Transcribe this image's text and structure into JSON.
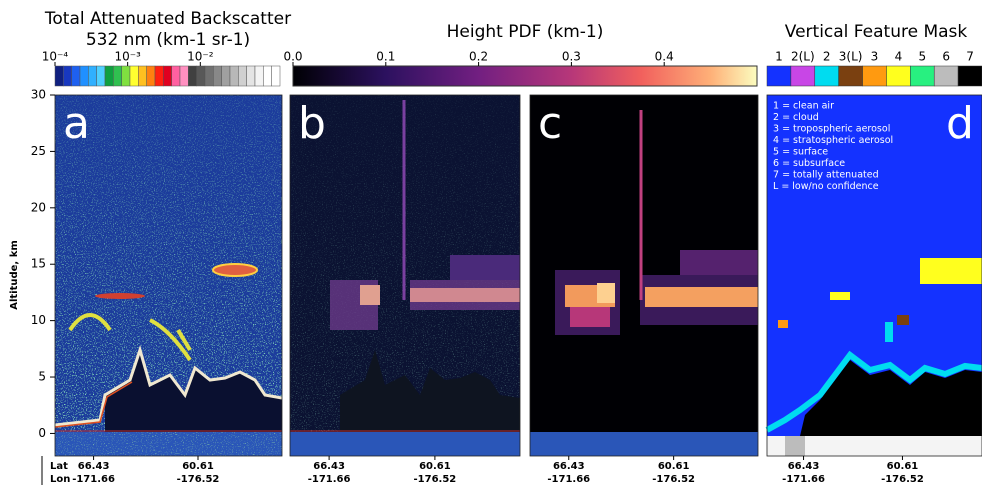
{
  "backscatter_bar": {
    "title_lines": [
      "Total Attenuated Backscatter",
      "532 nm (km-1 sr-1)"
    ],
    "log": true,
    "lim": [
      0.0001,
      0.125
    ],
    "ticks": [
      {
        "value": 0.0001,
        "label": "10⁻⁴"
      },
      {
        "value": 0.001,
        "label": "10⁻³"
      },
      {
        "value": 0.01,
        "label": "10⁻²"
      }
    ]
  },
  "pdf_bar": {
    "title": "Height PDF (km-1)",
    "lim": [
      0,
      0.5
    ],
    "ticks": [
      {
        "value": 0,
        "label": "0.0"
      },
      0.1,
      0.2,
      0.3,
      0.4
    ]
  },
  "feature_mask_bar": {
    "title": "Vertical Feature Mask",
    "categories": [
      "1",
      "2(L)",
      "2",
      "3(L)",
      "3",
      "4",
      "5",
      "6",
      "7"
    ],
    "colors": [
      "#1432ff",
      "#c846e6",
      "#00dcf0",
      "#7a4010",
      "#ff9a10",
      "#ffff1e",
      "#28f080",
      "#bcbcbc",
      "#000000"
    ]
  },
  "panels": [
    "a",
    "b",
    "c",
    "d"
  ],
  "legend": [
    "1 = clean air",
    "2 = cloud",
    "3 = tropospheric aerosol",
    "4 = stratospheric aerosol",
    "5 = surface",
    "6 = subsurface",
    "7 = totally attenuated",
    "L = low/no confidence"
  ],
  "y_axis": {
    "label": "Altitude, km",
    "lim": [
      -2,
      30
    ],
    "ticks": [
      0,
      5,
      10,
      15,
      20,
      25,
      30
    ]
  },
  "x_axis": {
    "row_labels": [
      "Lat",
      "Lon"
    ],
    "ticks": [
      {
        "lat": 66.43,
        "lon": -171.66
      },
      {
        "lat": 60.61,
        "lon": -176.52
      }
    ]
  }
}
